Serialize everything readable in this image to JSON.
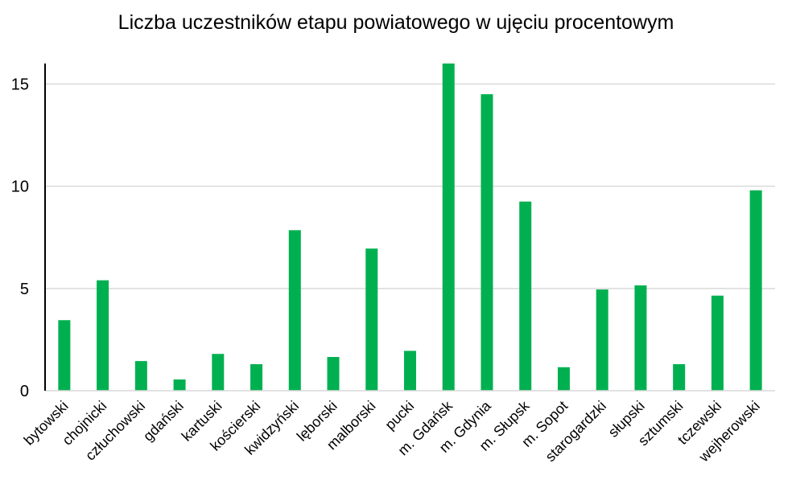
{
  "chart_data": {
    "type": "bar",
    "title": "Liczba uczestników etapu powiatowego w ujęciu procentowym",
    "xlabel": "",
    "ylabel": "",
    "categories": [
      "bytowski",
      "chojnicki",
      "człuchowski",
      "gdański",
      "kartuski",
      "kościerski",
      "kwidzyński",
      "lęborski",
      "malborski",
      "pucki",
      "m. Gdańsk",
      "m. Gdynia",
      "m. Słupsk",
      "m. Sopot",
      "starogardzki",
      "słupski",
      "sztumski",
      "tczewski",
      "wejherowski"
    ],
    "values": [
      3.45,
      5.4,
      1.45,
      0.55,
      1.8,
      1.3,
      7.85,
      1.65,
      6.95,
      1.95,
      16.0,
      14.5,
      9.25,
      1.15,
      4.95,
      5.15,
      1.3,
      4.65,
      9.8
    ],
    "ylim": [
      0,
      16
    ],
    "yticks": [
      0,
      5,
      10,
      15
    ],
    "grid": true,
    "colors": {
      "bar": "#00b050",
      "grid": "#d9d9d9",
      "axis": "#000000"
    }
  }
}
